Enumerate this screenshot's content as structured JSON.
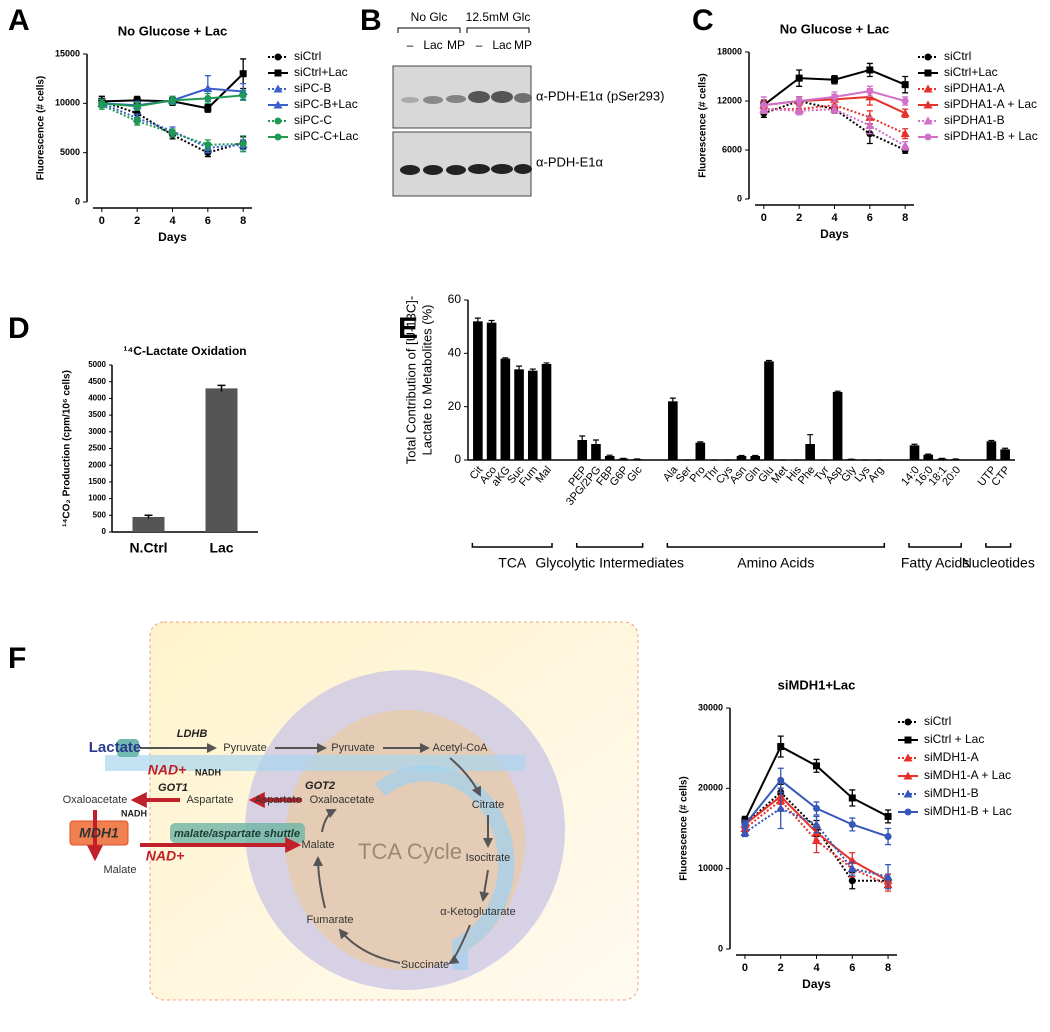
{
  "panel_labels": [
    "A",
    "B",
    "C",
    "D",
    "E",
    "F"
  ],
  "chart_data": [
    {
      "type": "line",
      "title": "No Glucose + Lac",
      "xlabel": "Days",
      "ylabel": "Fluorescence (# cells)",
      "x": [
        0,
        2,
        4,
        6,
        8
      ],
      "xlim": [
        -0.5,
        8.5
      ],
      "xticks": [
        0,
        2,
        4,
        6,
        8
      ],
      "ylim": [
        0,
        15000
      ],
      "yticks": [
        0,
        5000,
        10000,
        15000
      ],
      "series": [
        {
          "name": "siCtrl",
          "color": "#000000",
          "line_style": "dotted",
          "marker": "circle",
          "values": [
            10200,
            9000,
            6800,
            5000,
            6000
          ],
          "errors": [
            500,
            500,
            400,
            400,
            600
          ]
        },
        {
          "name": "siCtrl+Lac",
          "color": "#000000",
          "line_style": "solid",
          "marker": "square",
          "values": [
            10200,
            10300,
            10200,
            9500,
            13000
          ],
          "errors": [
            500,
            400,
            400,
            400,
            1500
          ]
        },
        {
          "name": "siPC-B",
          "color": "#3a5fcd",
          "line_style": "dotted",
          "marker": "triangle",
          "values": [
            10000,
            8500,
            7200,
            5500,
            5800
          ],
          "errors": [
            400,
            400,
            400,
            500,
            500
          ]
        },
        {
          "name": "siPC-B+Lac",
          "color": "#3a5fcd",
          "line_style": "solid",
          "marker": "triangle",
          "values": [
            10000,
            9800,
            10300,
            11500,
            11200
          ],
          "errors": [
            400,
            400,
            400,
            1300,
            800
          ]
        },
        {
          "name": "siPC-C",
          "color": "#1f9a55",
          "line_style": "dotted",
          "marker": "circle",
          "values": [
            9800,
            8200,
            7000,
            5800,
            5900
          ],
          "errors": [
            400,
            400,
            400,
            500,
            800
          ]
        },
        {
          "name": "siPC-C+Lac",
          "color": "#1f9a55",
          "line_style": "solid",
          "marker": "circle",
          "values": [
            10000,
            9700,
            10300,
            10500,
            10800
          ],
          "errors": [
            400,
            400,
            400,
            500,
            500
          ]
        }
      ]
    },
    {
      "type": "line",
      "title": "No Glucose + Lac",
      "xlabel": "Days",
      "ylabel": "Fluorescence (# cells)",
      "x": [
        0,
        2,
        4,
        6,
        8
      ],
      "xlim": [
        -0.5,
        8.5
      ],
      "xticks": [
        0,
        2,
        4,
        6,
        8
      ],
      "ylim": [
        0,
        18000
      ],
      "yticks": [
        0,
        6000,
        12000,
        18000
      ],
      "series": [
        {
          "name": "siCtrl",
          "color": "#000000",
          "line_style": "dotted",
          "marker": "circle",
          "values": [
            10500,
            12000,
            11000,
            8000,
            6000
          ],
          "errors": [
            500,
            500,
            500,
            1200,
            400
          ]
        },
        {
          "name": "siCtrl+Lac",
          "color": "#000000",
          "line_style": "solid",
          "marker": "square",
          "values": [
            11500,
            14800,
            14600,
            15800,
            14000
          ],
          "errors": [
            600,
            1000,
            500,
            800,
            1000
          ]
        },
        {
          "name": "siPDHA1-A",
          "color": "#e8302a",
          "line_style": "dotted",
          "marker": "triangle",
          "values": [
            11000,
            11000,
            11500,
            10000,
            8000
          ],
          "errors": [
            500,
            500,
            500,
            800,
            600
          ]
        },
        {
          "name": "siPDHA1-A + Lac",
          "color": "#e8302a",
          "line_style": "solid",
          "marker": "triangle",
          "values": [
            11500,
            12000,
            12200,
            12500,
            10500
          ],
          "errors": [
            500,
            500,
            600,
            1000,
            500
          ]
        },
        {
          "name": "siPDHA1-B",
          "color": "#d070c8",
          "line_style": "dotted",
          "marker": "triangle",
          "values": [
            11000,
            10800,
            11000,
            9000,
            6500
          ],
          "errors": [
            500,
            500,
            500,
            1000,
            500
          ]
        },
        {
          "name": "siPDHA1-B + Lac",
          "color": "#d070c8",
          "line_style": "solid",
          "marker": "circle",
          "values": [
            11500,
            12000,
            12500,
            13200,
            12000
          ],
          "errors": [
            1000,
            500,
            600,
            600,
            500
          ]
        }
      ]
    },
    {
      "type": "bar",
      "title": "¹⁴C-Lactate Oxidation",
      "ylabel": "¹⁴CO₂ Production (cpm/10⁶ cells)",
      "categories": [
        "N.Ctrl",
        "Lac"
      ],
      "values": [
        450,
        4300
      ],
      "errors": [
        50,
        90
      ],
      "color": "#555555",
      "ylim": [
        0,
        5000
      ],
      "yticks": [
        0,
        500,
        1000,
        1500,
        2000,
        2500,
        3000,
        3500,
        4000,
        4500,
        5000
      ]
    },
    {
      "type": "grouped_bar",
      "ylabel": [
        "Total Contribution of [U-13C]-",
        "Lactate to Metabolites (%)"
      ],
      "color": "#000000",
      "ylim": [
        0,
        60
      ],
      "yticks": [
        0,
        20,
        40,
        60
      ],
      "groups": [
        {
          "name": "TCA",
          "categories": [
            "Cit",
            "Aco",
            "aKG",
            "Suc",
            "Fum",
            "Mal"
          ],
          "values": [
            52,
            51.5,
            38,
            34,
            33.5,
            36
          ],
          "errors": [
            1.2,
            0.8,
            0.3,
            1.2,
            0.6,
            0.4
          ]
        },
        {
          "name": "Glycolytic Intermediates",
          "categories": [
            "PEP",
            "3PG/2PG",
            "FBP",
            "G6P",
            "Glc"
          ],
          "values": [
            7.5,
            6,
            1.5,
            0.5,
            0.3
          ],
          "errors": [
            1.5,
            1.5,
            0.3,
            0.1,
            0.1
          ]
        },
        {
          "name": "Amino Acids",
          "categories": [
            "Ala",
            "Ser",
            "Pro",
            "Thr",
            "Cys",
            "Asn",
            "Gln",
            "Glu",
            "Met",
            "His",
            "Phe",
            "Tyr",
            "Asp",
            "Gly",
            "Lys",
            "Arg"
          ],
          "values": [
            22,
            0,
            6.5,
            0,
            0,
            1.5,
            1.5,
            37,
            0,
            0,
            6,
            0,
            25.5,
            0.3,
            0,
            0
          ],
          "errors": [
            1.2,
            0,
            0.3,
            0,
            0,
            0.2,
            0.2,
            0.3,
            0,
            0,
            3.5,
            0,
            0.3,
            0,
            0,
            0
          ]
        },
        {
          "name": "Fatty Acids",
          "categories": [
            "14:0",
            "16:0",
            "18:1",
            "20:0"
          ],
          "values": [
            5.5,
            2,
            0.5,
            0.3
          ],
          "errors": [
            0.4,
            0.2,
            0.1,
            0.1
          ]
        },
        {
          "name": "Nucleotides",
          "categories": [
            "UTP",
            "CTP"
          ],
          "values": [
            7,
            4
          ],
          "errors": [
            0.3,
            0.4
          ]
        }
      ]
    },
    {
      "type": "line",
      "title": "siMDH1+Lac",
      "xlabel": "Days",
      "ylabel": "Fluorescence (# cells)",
      "x": [
        0,
        2,
        4,
        6,
        8
      ],
      "xlim": [
        -0.5,
        8.5
      ],
      "xticks": [
        0,
        2,
        4,
        6,
        8
      ],
      "ylim": [
        0,
        30000
      ],
      "yticks": [
        0,
        10000,
        20000,
        30000
      ],
      "series": [
        {
          "name": "siCtrl",
          "color": "#000000",
          "line_style": "dotted",
          "marker": "circle",
          "values": [
            15500,
            19500,
            15000,
            8500,
            8500
          ],
          "errors": [
            500,
            1000,
            1000,
            1000,
            800
          ]
        },
        {
          "name": "siCtrl + Lac",
          "color": "#000000",
          "line_style": "solid",
          "marker": "square",
          "values": [
            16000,
            25200,
            22800,
            18800,
            16500
          ],
          "errors": [
            500,
            1300,
            800,
            1000,
            800
          ]
        },
        {
          "name": "siMDH1-A",
          "color": "#e8302a",
          "line_style": "dotted",
          "marker": "triangle",
          "values": [
            15000,
            18500,
            13500,
            10000,
            8000
          ],
          "errors": [
            500,
            1000,
            1500,
            1000,
            800
          ]
        },
        {
          "name": "siMDH1-A + Lac",
          "color": "#e8302a",
          "line_style": "solid",
          "marker": "triangle",
          "values": [
            15500,
            19000,
            14500,
            11000,
            8500
          ],
          "errors": [
            500,
            1000,
            1000,
            1000,
            800
          ]
        },
        {
          "name": "siMDH1-B",
          "color": "#3558b8",
          "line_style": "dotted",
          "marker": "triangle",
          "values": [
            14500,
            17500,
            15500,
            10000,
            9000
          ],
          "errors": [
            500,
            2500,
            1000,
            800,
            1500
          ]
        },
        {
          "name": "siMDH1-B + Lac",
          "color": "#3558b8",
          "line_style": "solid",
          "marker": "circle",
          "values": [
            15500,
            21000,
            17500,
            15500,
            14000
          ],
          "errors": [
            500,
            1500,
            800,
            800,
            1000
          ]
        }
      ]
    }
  ],
  "blot": {
    "conditions": [
      "No Glc",
      "12.5mM Glc"
    ],
    "lanes": [
      "–",
      "Lac",
      "MP",
      "–",
      "Lac",
      "MP"
    ],
    "bands": [
      "α-PDH-E1α (pSer293)",
      "α-PDH-E1α"
    ]
  },
  "diagram": {
    "nodes": [
      "Lactate",
      "LDHB",
      "Pyruvate",
      "NAD+",
      "NADH",
      "Pyruvate",
      "Acetyl-CoA",
      "Citrate",
      "Isocitrate",
      "α-Ketoglutarate",
      "Succinate",
      "Fumarate",
      "Malate",
      "TCA Cycle",
      "Oxaloacetate",
      "GOT2",
      "Aspartate",
      "Aspartate",
      "GOT1",
      "Oxaloacetate",
      "NADH",
      "MDH1",
      "NAD+",
      "Malate",
      "malate/aspartate shuttle"
    ]
  }
}
